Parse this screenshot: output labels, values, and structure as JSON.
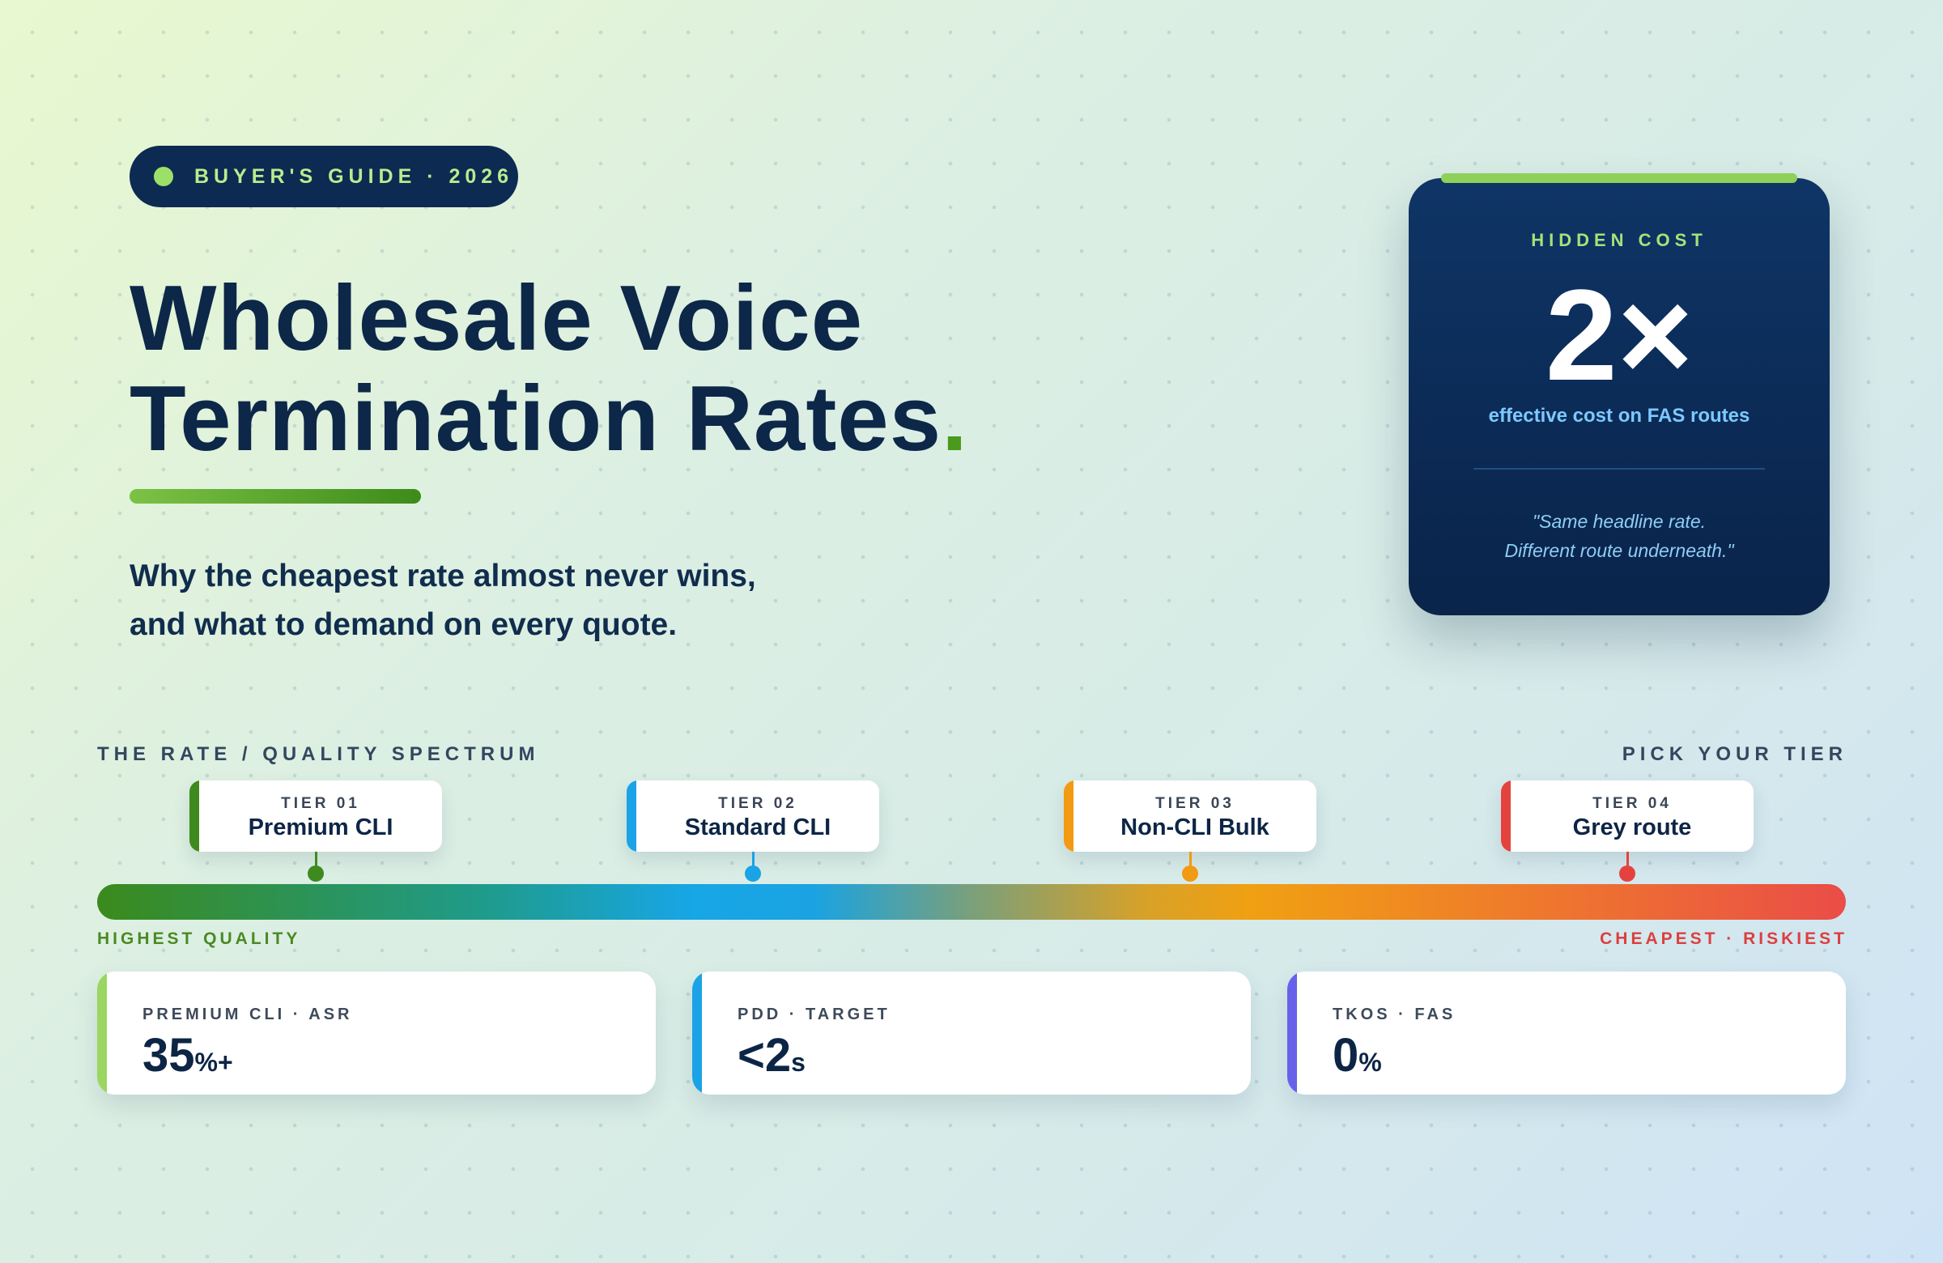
{
  "badge": {
    "text": "BUYER'S GUIDE · 2026"
  },
  "hero": {
    "title_line1": "Wholesale Voice",
    "title_line2": "Termination Rates",
    "title_period": ".",
    "subtitle_line1": "Why the cheapest rate almost never wins,",
    "subtitle_line2": "and what to demand on every quote."
  },
  "cost_card": {
    "label": "HIDDEN COST",
    "value": "2×",
    "description": "effective cost on FAS routes",
    "quote_line1": "\"Same headline rate.",
    "quote_line2": "Different route underneath.\""
  },
  "spectrum": {
    "title": "THE RATE / QUALITY SPECTRUM",
    "right_label": "PICK YOUR TIER",
    "low_label": "HIGHEST QUALITY",
    "high_label": "CHEAPEST · RISKIEST",
    "tiers": [
      {
        "label": "TIER 01",
        "name": "Premium CLI",
        "color": "#3e8a1f"
      },
      {
        "label": "TIER 02",
        "name": "Standard CLI",
        "color": "#1aa3e6"
      },
      {
        "label": "TIER 03",
        "name": "Non-CLI Bulk",
        "color": "#f29a13"
      },
      {
        "label": "TIER 04",
        "name": "Grey route",
        "color": "#e5423f"
      }
    ]
  },
  "metrics": [
    {
      "label": "PREMIUM CLI · ASR",
      "value": "35",
      "unit": "%+",
      "color": "#9ad661"
    },
    {
      "label": "PDD · TARGET",
      "value": "<2",
      "unit": "s",
      "color": "#1aa3e6"
    },
    {
      "label": "TKOS · FAS",
      "value": "0",
      "unit": "%",
      "color": "#6761ea"
    }
  ]
}
